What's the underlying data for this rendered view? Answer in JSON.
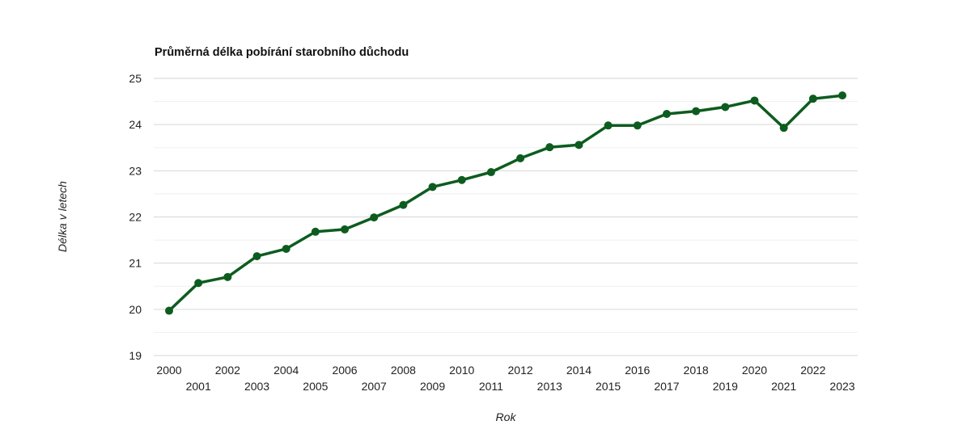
{
  "chart_data": {
    "type": "line",
    "title": "Průměrná délka pobírání starobního důchodu",
    "xlabel": "Rok",
    "ylabel": "Délka v letech",
    "ylim": [
      19,
      25
    ],
    "yticks": [
      "19",
      "20",
      "21",
      "22",
      "23",
      "24",
      "25"
    ],
    "grid": true,
    "legend": "none",
    "color": "#0d5c1f",
    "x": [
      "2000",
      "2001",
      "2002",
      "2003",
      "2004",
      "2005",
      "2006",
      "2007",
      "2008",
      "2009",
      "2010",
      "2011",
      "2012",
      "2013",
      "2014",
      "2015",
      "2016",
      "2017",
      "2018",
      "2019",
      "2020",
      "2021",
      "2022",
      "2023"
    ],
    "series": [
      {
        "values": [
          19.97,
          20.57,
          20.7,
          21.15,
          21.31,
          21.68,
          21.73,
          21.99,
          22.26,
          22.65,
          22.8,
          22.97,
          23.27,
          23.51,
          23.56,
          23.98,
          23.98,
          24.23,
          24.29,
          24.38,
          24.52,
          23.93,
          24.56,
          24.63
        ]
      }
    ]
  }
}
